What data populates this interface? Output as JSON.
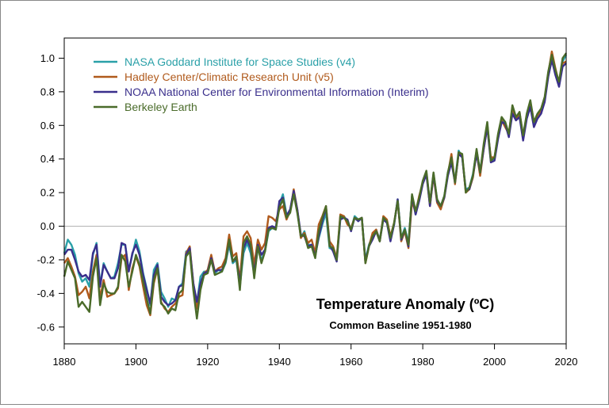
{
  "chart_data": {
    "type": "line",
    "title": "Temperature Anomaly (ºC)",
    "subtitle": "Common Baseline 1951-1980",
    "xlabel": "",
    "ylabel": "",
    "xlim": [
      1880,
      2020
    ],
    "ylim": [
      -0.7,
      1.12
    ],
    "xticks": [
      "1880",
      "1900",
      "1920",
      "1940",
      "1960",
      "1980",
      "2000",
      "2020"
    ],
    "yticks": [
      "-0.6",
      "-0.4",
      "-0.2",
      "0.0",
      "0.2",
      "0.4",
      "0.6",
      "0.8",
      "1.0"
    ],
    "zero_line": 0,
    "legend_position": "top-left",
    "x_start": 1880,
    "series": [
      {
        "name": "NASA Goddard Institute for Space Studies (v4)",
        "color": "#2aa0a8",
        "values": [
          -0.16,
          -0.08,
          -0.11,
          -0.17,
          -0.28,
          -0.33,
          -0.31,
          -0.36,
          -0.17,
          -0.1,
          -0.35,
          -0.22,
          -0.27,
          -0.31,
          -0.3,
          -0.22,
          -0.11,
          -0.11,
          -0.26,
          -0.17,
          -0.08,
          -0.15,
          -0.28,
          -0.37,
          -0.47,
          -0.26,
          -0.22,
          -0.39,
          -0.43,
          -0.48,
          -0.43,
          -0.44,
          -0.36,
          -0.34,
          -0.15,
          -0.14,
          -0.36,
          -0.46,
          -0.3,
          -0.27,
          -0.27,
          -0.19,
          -0.28,
          -0.26,
          -0.27,
          -0.22,
          -0.11,
          -0.22,
          -0.2,
          -0.36,
          -0.16,
          -0.1,
          -0.16,
          -0.29,
          -0.13,
          -0.2,
          -0.15,
          -0.03,
          -0.01,
          -0.02,
          0.13,
          0.19,
          0.07,
          0.09,
          0.2,
          0.09,
          -0.07,
          -0.03,
          -0.11,
          -0.11,
          -0.17,
          -0.07,
          0.01,
          0.08,
          -0.13,
          -0.14,
          -0.19,
          0.05,
          0.06,
          0.03,
          -0.02,
          0.06,
          0.04,
          0.05,
          -0.2,
          -0.11,
          -0.06,
          -0.02,
          -0.08,
          0.05,
          0.03,
          -0.08,
          0.01,
          0.16,
          -0.07,
          -0.01,
          -0.1,
          0.18,
          0.07,
          0.16,
          0.26,
          0.32,
          0.14,
          0.31,
          0.16,
          0.12,
          0.18,
          0.32,
          0.39,
          0.27,
          0.45,
          0.41,
          0.22,
          0.23,
          0.31,
          0.45,
          0.33,
          0.47,
          0.61,
          0.39,
          0.4,
          0.54,
          0.63,
          0.62,
          0.54,
          0.68,
          0.64,
          0.66,
          0.54,
          0.66,
          0.72,
          0.61,
          0.65,
          0.68,
          0.75,
          0.9,
          1.01,
          0.92,
          0.85,
          0.98,
          1.02
        ]
      },
      {
        "name": "Hadley Center/Climatic Research Unit (v5)",
        "color": "#b05a1c",
        "values": [
          -0.22,
          -0.19,
          -0.24,
          -0.3,
          -0.41,
          -0.39,
          -0.36,
          -0.43,
          -0.27,
          -0.17,
          -0.43,
          -0.32,
          -0.42,
          -0.41,
          -0.4,
          -0.37,
          -0.19,
          -0.17,
          -0.38,
          -0.25,
          -0.18,
          -0.24,
          -0.36,
          -0.47,
          -0.53,
          -0.34,
          -0.25,
          -0.45,
          -0.49,
          -0.51,
          -0.48,
          -0.46,
          -0.42,
          -0.41,
          -0.16,
          -0.12,
          -0.34,
          -0.49,
          -0.36,
          -0.28,
          -0.26,
          -0.17,
          -0.27,
          -0.25,
          -0.24,
          -0.19,
          -0.05,
          -0.18,
          -0.16,
          -0.32,
          -0.06,
          -0.03,
          -0.07,
          -0.23,
          -0.08,
          -0.14,
          -0.1,
          0.06,
          0.05,
          0.03,
          0.1,
          0.12,
          0.04,
          0.09,
          0.22,
          0.1,
          -0.07,
          -0.04,
          -0.1,
          -0.08,
          -0.16,
          0.01,
          0.06,
          0.12,
          -0.09,
          -0.12,
          -0.19,
          0.07,
          0.06,
          0.01,
          -0.01,
          0.05,
          0.04,
          0.05,
          -0.22,
          -0.12,
          -0.04,
          -0.02,
          -0.09,
          0.06,
          0.04,
          -0.06,
          0.02,
          0.15,
          -0.09,
          -0.03,
          -0.13,
          0.15,
          0.08,
          0.18,
          0.26,
          0.32,
          0.12,
          0.3,
          0.14,
          0.1,
          0.17,
          0.31,
          0.43,
          0.25,
          0.44,
          0.42,
          0.2,
          0.22,
          0.29,
          0.44,
          0.3,
          0.46,
          0.59,
          0.41,
          0.41,
          0.54,
          0.63,
          0.59,
          0.55,
          0.71,
          0.63,
          0.68,
          0.53,
          0.65,
          0.74,
          0.62,
          0.66,
          0.69,
          0.76,
          0.91,
          1.04,
          0.94,
          0.85,
          0.97,
          0.98
        ]
      },
      {
        "name": "NOAA National Center for Environmental Information (Interim)",
        "color": "#3a2f8c",
        "values": [
          -0.17,
          -0.14,
          -0.14,
          -0.2,
          -0.27,
          -0.3,
          -0.29,
          -0.32,
          -0.16,
          -0.11,
          -0.36,
          -0.23,
          -0.27,
          -0.31,
          -0.31,
          -0.25,
          -0.1,
          -0.11,
          -0.27,
          -0.16,
          -0.11,
          -0.17,
          -0.29,
          -0.38,
          -0.46,
          -0.29,
          -0.23,
          -0.42,
          -0.45,
          -0.47,
          -0.46,
          -0.44,
          -0.36,
          -0.35,
          -0.17,
          -0.13,
          -0.34,
          -0.45,
          -0.34,
          -0.28,
          -0.27,
          -0.19,
          -0.27,
          -0.26,
          -0.26,
          -0.21,
          -0.09,
          -0.21,
          -0.19,
          -0.34,
          -0.13,
          -0.08,
          -0.13,
          -0.28,
          -0.11,
          -0.17,
          -0.14,
          -0.01,
          0.0,
          -0.01,
          0.15,
          0.17,
          0.06,
          0.1,
          0.21,
          0.1,
          -0.05,
          -0.06,
          -0.12,
          -0.11,
          -0.18,
          -0.06,
          0.03,
          0.11,
          -0.11,
          -0.15,
          -0.21,
          0.04,
          0.05,
          0.04,
          -0.03,
          0.05,
          0.03,
          0.05,
          -0.21,
          -0.12,
          -0.08,
          -0.03,
          -0.09,
          0.04,
          0.02,
          -0.09,
          0.01,
          0.16,
          -0.08,
          -0.02,
          -0.12,
          0.18,
          0.07,
          0.15,
          0.25,
          0.31,
          0.12,
          0.31,
          0.15,
          0.12,
          0.17,
          0.3,
          0.38,
          0.26,
          0.43,
          0.41,
          0.21,
          0.22,
          0.3,
          0.43,
          0.32,
          0.46,
          0.59,
          0.38,
          0.39,
          0.52,
          0.62,
          0.61,
          0.53,
          0.67,
          0.63,
          0.65,
          0.51,
          0.64,
          0.71,
          0.59,
          0.64,
          0.67,
          0.74,
          0.89,
          0.99,
          0.9,
          0.83,
          0.95,
          0.97
        ]
      },
      {
        "name": "Berkeley Earth",
        "color": "#4a6b2a",
        "values": [
          -0.3,
          -0.21,
          -0.26,
          -0.31,
          -0.48,
          -0.45,
          -0.48,
          -0.51,
          -0.3,
          -0.19,
          -0.47,
          -0.34,
          -0.39,
          -0.4,
          -0.4,
          -0.36,
          -0.17,
          -0.21,
          -0.36,
          -0.27,
          -0.17,
          -0.23,
          -0.33,
          -0.43,
          -0.52,
          -0.32,
          -0.25,
          -0.46,
          -0.48,
          -0.52,
          -0.49,
          -0.5,
          -0.4,
          -0.38,
          -0.18,
          -0.15,
          -0.38,
          -0.55,
          -0.38,
          -0.29,
          -0.28,
          -0.2,
          -0.29,
          -0.28,
          -0.27,
          -0.21,
          -0.08,
          -0.21,
          -0.18,
          -0.38,
          -0.1,
          -0.06,
          -0.11,
          -0.31,
          -0.12,
          -0.22,
          -0.15,
          -0.02,
          -0.01,
          -0.02,
          0.11,
          0.16,
          0.05,
          0.08,
          0.19,
          0.08,
          -0.06,
          -0.05,
          -0.13,
          -0.12,
          -0.19,
          -0.03,
          0.05,
          0.12,
          -0.12,
          -0.13,
          -0.2,
          0.06,
          0.05,
          0.03,
          -0.02,
          0.05,
          0.04,
          0.05,
          -0.22,
          -0.12,
          -0.06,
          -0.03,
          -0.09,
          0.05,
          0.03,
          -0.07,
          0.02,
          0.15,
          -0.07,
          -0.02,
          -0.11,
          0.19,
          0.09,
          0.17,
          0.27,
          0.33,
          0.14,
          0.32,
          0.16,
          0.12,
          0.18,
          0.32,
          0.41,
          0.26,
          0.44,
          0.43,
          0.2,
          0.23,
          0.3,
          0.46,
          0.32,
          0.49,
          0.62,
          0.39,
          0.41,
          0.55,
          0.65,
          0.62,
          0.55,
          0.72,
          0.65,
          0.68,
          0.54,
          0.67,
          0.75,
          0.62,
          0.67,
          0.7,
          0.77,
          0.92,
          1.02,
          0.93,
          0.86,
          1.0,
          1.03
        ]
      }
    ]
  }
}
